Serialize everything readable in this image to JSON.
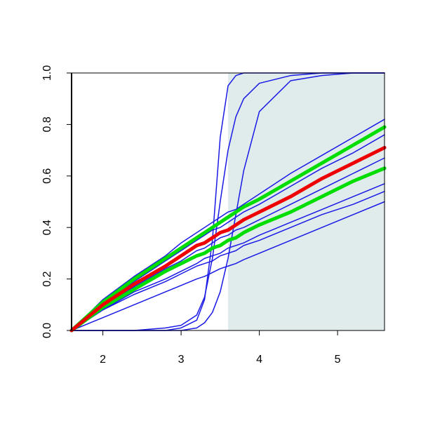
{
  "chart_data": {
    "type": "line",
    "x": [
      1.6,
      2.0,
      2.4,
      2.8,
      3.0,
      3.2,
      3.3,
      3.4,
      3.5,
      3.6,
      3.7,
      3.8,
      4.0,
      4.4,
      4.8,
      5.2,
      5.6
    ],
    "xlim": [
      1.6,
      5.6
    ],
    "ylim": [
      0,
      1
    ],
    "xticks": [
      2,
      3,
      4,
      5
    ],
    "yticks": [
      {
        "value": 0,
        "label": "0.0"
      },
      {
        "value": 0.2,
        "label": "0.2"
      },
      {
        "value": 0.4,
        "label": "0.4"
      },
      {
        "value": 0.6,
        "label": "0.6"
      },
      {
        "value": 0.8,
        "label": "0.8"
      },
      {
        "value": 1,
        "label": "1.0"
      }
    ],
    "shaded_x": [
      3.6,
      5.6
    ],
    "shade_color": "#e0ecec",
    "series": [
      {
        "color": "#1a1ae6",
        "linewidth": 1.5,
        "values": [
          0,
          0.12,
          0.21,
          0.29,
          0.34,
          0.38,
          0.4,
          0.42,
          0.44,
          0.46,
          0.47,
          0.49,
          0.53,
          0.61,
          0.68,
          0.75,
          0.82
        ]
      },
      {
        "color": "#1a1ae6",
        "linewidth": 1.5,
        "values": [
          0,
          0.11,
          0.19,
          0.27,
          0.31,
          0.35,
          0.37,
          0.39,
          0.4,
          0.42,
          0.44,
          0.46,
          0.49,
          0.56,
          0.63,
          0.69,
          0.76
        ]
      },
      {
        "color": "#1a1ae6",
        "linewidth": 1.5,
        "values": [
          0,
          0.09,
          0.17,
          0.24,
          0.27,
          0.31,
          0.32,
          0.34,
          0.36,
          0.37,
          0.39,
          0.4,
          0.43,
          0.49,
          0.55,
          0.61,
          0.67
        ]
      },
      {
        "color": "#1a1ae6",
        "linewidth": 1.5,
        "values": [
          0,
          0.08,
          0.15,
          0.2,
          0.23,
          0.26,
          0.28,
          0.29,
          0.3,
          0.32,
          0.33,
          0.34,
          0.37,
          0.42,
          0.47,
          0.52,
          0.57
        ]
      },
      {
        "color": "#1a1ae6",
        "linewidth": 1.5,
        "values": [
          0,
          0.08,
          0.14,
          0.19,
          0.22,
          0.25,
          0.26,
          0.27,
          0.29,
          0.3,
          0.31,
          0.33,
          0.35,
          0.4,
          0.45,
          0.49,
          0.54
        ]
      },
      {
        "color": "#1a1ae6",
        "linewidth": 1.5,
        "values": [
          0,
          0.05,
          0.1,
          0.15,
          0.175,
          0.2,
          0.21,
          0.225,
          0.24,
          0.25,
          0.26,
          0.275,
          0.3,
          0.35,
          0.4,
          0.45,
          0.5
        ]
      },
      {
        "color": "#1a1ae6",
        "linewidth": 1.5,
        "values": [
          0,
          0,
          0,
          0,
          0.01,
          0.04,
          0.12,
          0.35,
          0.75,
          0.95,
          0.99,
          1,
          1,
          1,
          1,
          1,
          1
        ]
      },
      {
        "color": "#1a1ae6",
        "linewidth": 1.5,
        "values": [
          0,
          0,
          0,
          0.01,
          0.02,
          0.06,
          0.13,
          0.28,
          0.5,
          0.7,
          0.83,
          0.9,
          0.96,
          0.99,
          1,
          1,
          1
        ]
      },
      {
        "color": "#1a1ae6",
        "linewidth": 1.5,
        "values": [
          0,
          0,
          0,
          0,
          0,
          0.01,
          0.03,
          0.07,
          0.15,
          0.28,
          0.45,
          0.62,
          0.85,
          0.97,
          0.99,
          1,
          1
        ]
      },
      {
        "color": "#00dd00",
        "linewidth": 5,
        "values": [
          0,
          0.11,
          0.2,
          0.28,
          0.32,
          0.36,
          0.38,
          0.4,
          0.42,
          0.44,
          0.46,
          0.48,
          0.51,
          0.58,
          0.65,
          0.72,
          0.79
        ]
      },
      {
        "color": "#00dd00",
        "linewidth": 5,
        "values": [
          0,
          0.09,
          0.16,
          0.23,
          0.26,
          0.29,
          0.3,
          0.32,
          0.33,
          0.35,
          0.36,
          0.38,
          0.41,
          0.46,
          0.52,
          0.58,
          0.63
        ]
      },
      {
        "color": "#ee0000",
        "linewidth": 5,
        "values": [
          0,
          0.1,
          0.18,
          0.25,
          0.29,
          0.33,
          0.34,
          0.36,
          0.38,
          0.39,
          0.41,
          0.43,
          0.46,
          0.52,
          0.59,
          0.65,
          0.71
        ]
      }
    ]
  }
}
